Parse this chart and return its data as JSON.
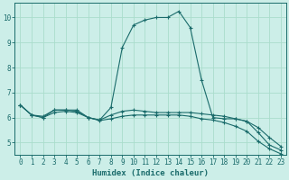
{
  "title": "",
  "xlabel": "Humidex (Indice chaleur)",
  "background_color": "#cceee8",
  "grid_color": "#aaddcc",
  "line_color": "#1a6b6b",
  "xlim": [
    -0.5,
    23.5
  ],
  "ylim": [
    4.5,
    10.6
  ],
  "xticks": [
    0,
    1,
    2,
    3,
    4,
    5,
    6,
    7,
    8,
    9,
    10,
    11,
    12,
    13,
    14,
    15,
    16,
    17,
    18,
    19,
    20,
    21,
    22,
    23
  ],
  "yticks": [
    5,
    6,
    7,
    8,
    9,
    10
  ],
  "line1_x": [
    0,
    1,
    2,
    3,
    4,
    5,
    6,
    7,
    8,
    9,
    10,
    11,
    12,
    13,
    14,
    15,
    16,
    17,
    18,
    19,
    20,
    21,
    22,
    23
  ],
  "line1_y": [
    6.5,
    6.1,
    6.0,
    6.3,
    6.3,
    6.3,
    6.0,
    5.9,
    6.4,
    8.8,
    9.7,
    9.9,
    10.0,
    10.0,
    10.25,
    9.6,
    7.5,
    6.0,
    5.95,
    5.95,
    5.85,
    5.4,
    4.9,
    4.7
  ],
  "line2_x": [
    0,
    1,
    2,
    3,
    4,
    5,
    6,
    7,
    8,
    9,
    10,
    11,
    12,
    13,
    14,
    15,
    16,
    17,
    18,
    19,
    20,
    21,
    22,
    23
  ],
  "line2_y": [
    6.5,
    6.1,
    6.05,
    6.3,
    6.3,
    6.25,
    6.0,
    5.9,
    6.1,
    6.25,
    6.3,
    6.25,
    6.2,
    6.2,
    6.2,
    6.2,
    6.15,
    6.1,
    6.05,
    5.95,
    5.85,
    5.6,
    5.2,
    4.85
  ],
  "line3_x": [
    0,
    1,
    2,
    3,
    4,
    5,
    6,
    7,
    8,
    9,
    10,
    11,
    12,
    13,
    14,
    15,
    16,
    17,
    18,
    19,
    20,
    21,
    22,
    23
  ],
  "line3_y": [
    6.5,
    6.1,
    6.0,
    6.2,
    6.25,
    6.2,
    6.0,
    5.88,
    5.95,
    6.05,
    6.1,
    6.1,
    6.1,
    6.1,
    6.1,
    6.05,
    5.95,
    5.9,
    5.8,
    5.65,
    5.45,
    5.05,
    4.75,
    4.55
  ]
}
